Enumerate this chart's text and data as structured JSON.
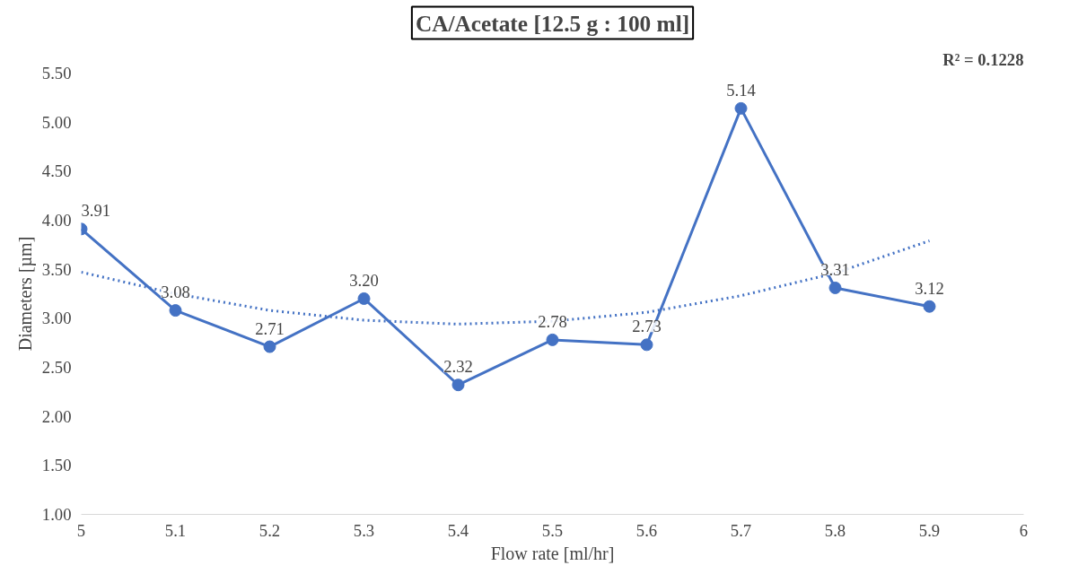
{
  "chart_data": {
    "type": "line",
    "title": "CA/Acetate [12.5 g : 100 ml]",
    "xlabel": "Flow rate [ml/hr]",
    "ylabel": "Diameters [µm]",
    "annotations": [
      "R² = 0.1228"
    ],
    "x": [
      5.0,
      5.1,
      5.2,
      5.3,
      5.4,
      5.5,
      5.6,
      5.7,
      5.8,
      5.9
    ],
    "series": [
      {
        "color": "#4472c4",
        "values": [
          3.91,
          3.08,
          2.71,
          3.2,
          2.32,
          2.78,
          2.73,
          5.14,
          3.31,
          3.12
        ],
        "value_labels": [
          "3.91",
          "3.08",
          "2.71",
          "3.20",
          "2.32",
          "2.78",
          "2.73",
          "5.14",
          "3.31",
          "3.12"
        ],
        "marker": "circle",
        "line_style": "solid"
      },
      {
        "color": "#4472c4",
        "x": [
          5.0,
          5.1,
          5.2,
          5.3,
          5.4,
          5.5,
          5.6,
          5.7,
          5.8,
          5.9
        ],
        "values": [
          3.47,
          3.25,
          3.08,
          2.98,
          2.94,
          2.97,
          3.06,
          3.23,
          3.46,
          3.79
        ],
        "marker": "none",
        "line_style": "dotted"
      }
    ],
    "xlim": [
      5,
      6
    ],
    "xticks": [
      5,
      5.1,
      5.2,
      5.3,
      5.4,
      5.5,
      5.6,
      5.7,
      5.8,
      5.9,
      6
    ],
    "ylim": [
      1,
      5.5
    ],
    "yticks": [
      {
        "value": 1,
        "label": "1.00"
      },
      {
        "value": 1.5,
        "label": "1.50"
      },
      {
        "value": 2,
        "label": "2.00"
      },
      {
        "value": 2.5,
        "label": "2.50"
      },
      {
        "value": 3,
        "label": "3.00"
      },
      {
        "value": 3.5,
        "label": "3.50"
      },
      {
        "value": 4,
        "label": "4.00"
      },
      {
        "value": 4.5,
        "label": "4.50"
      },
      {
        "value": 5,
        "label": "5.00"
      },
      {
        "value": 5.5,
        "label": "5.50"
      }
    ],
    "grid": false
  }
}
